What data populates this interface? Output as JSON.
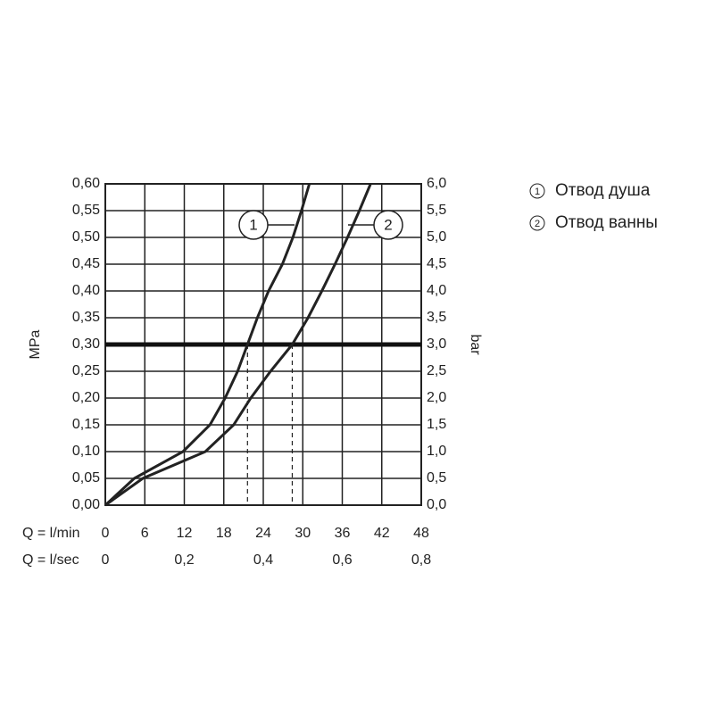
{
  "chart_data": {
    "type": "line",
    "y_label": "MPa",
    "y2_label": "bar",
    "x_label": "Q = l/min",
    "x2_label": "Q = l/sec",
    "xlim": [
      0,
      48
    ],
    "xticks": [
      0,
      6,
      12,
      18,
      24,
      30,
      36,
      42,
      48
    ],
    "x2lim": [
      0,
      0.8
    ],
    "x2ticks": [
      0,
      {
        "value": 0.2,
        "label": "0,2"
      },
      {
        "value": 0.4,
        "label": "0,4"
      },
      {
        "value": 0.6,
        "label": "0,6"
      },
      {
        "value": 0.8,
        "label": "0,8"
      }
    ],
    "ylim": [
      0,
      0.6
    ],
    "yticks": [
      {
        "value": 0,
        "label": "0,00"
      },
      {
        "value": 0.05,
        "label": "0,05"
      },
      {
        "value": 0.1,
        "label": "0,10"
      },
      {
        "value": 0.15,
        "label": "0,15"
      },
      {
        "value": 0.2,
        "label": "0,20"
      },
      {
        "value": 0.25,
        "label": "0,25"
      },
      {
        "value": 0.3,
        "label": "0,30"
      },
      {
        "value": 0.35,
        "label": "0,35"
      },
      {
        "value": 0.4,
        "label": "0,40"
      },
      {
        "value": 0.45,
        "label": "0,45"
      },
      {
        "value": 0.5,
        "label": "0,50"
      },
      {
        "value": 0.55,
        "label": "0,55"
      },
      {
        "value": 0.6,
        "label": "0,60"
      }
    ],
    "y2lim": [
      0,
      6
    ],
    "y2ticks": [
      {
        "value": 0,
        "label": "0,0"
      },
      {
        "value": 0.5,
        "label": "0,5"
      },
      {
        "value": 1,
        "label": "1,0"
      },
      {
        "value": 1.5,
        "label": "1,5"
      },
      {
        "value": 2,
        "label": "2,0"
      },
      {
        "value": 2.5,
        "label": "2,5"
      },
      {
        "value": 3,
        "label": "3,0"
      },
      {
        "value": 3.5,
        "label": "3,5"
      },
      {
        "value": 4,
        "label": "4,0"
      },
      {
        "value": 4.5,
        "label": "4,5"
      },
      {
        "value": 5,
        "label": "5,0"
      },
      {
        "value": 5.5,
        "label": "5,5"
      },
      {
        "value": 6,
        "label": "6,0"
      }
    ],
    "grid": true,
    "reference_line": 0.3,
    "series": [
      {
        "name": "Отвод душа",
        "label": "1",
        "color": "#222222",
        "x": [
          0,
          4.4,
          11.8,
          15.9,
          18.2,
          20.1,
          21.6,
          23.1,
          24.8,
          26.9,
          28.5,
          29.8,
          31.0
        ],
        "values": [
          0,
          0.05,
          0.1,
          0.15,
          0.2,
          0.25,
          0.3,
          0.35,
          0.4,
          0.45,
          0.5,
          0.55,
          0.6
        ]
      },
      {
        "name": "Отвод ванны",
        "label": "2",
        "color": "#222222",
        "x": [
          0,
          5.7,
          15.2,
          19.5,
          22.1,
          25.1,
          28.4,
          30.8,
          32.9,
          34.9,
          36.8,
          38.6,
          40.3
        ],
        "values": [
          0,
          0.05,
          0.1,
          0.15,
          0.2,
          0.25,
          0.3,
          0.35,
          0.4,
          0.45,
          0.5,
          0.55,
          0.6
        ]
      }
    ]
  }
}
